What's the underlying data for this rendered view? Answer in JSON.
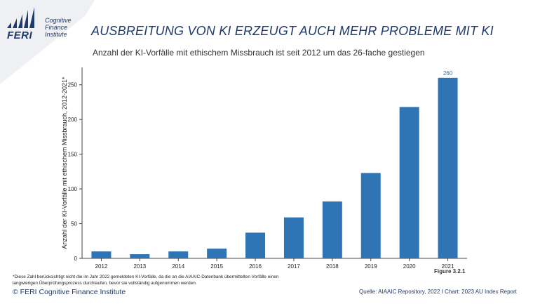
{
  "logo": {
    "name": "FERI",
    "tagline_lines": [
      "Cognitive",
      "Finance",
      "Institute"
    ]
  },
  "title": "AUSBREITUNG VON KI ERZEUGT AUCH MEHR PROBLEME MIT KI",
  "subtitle": "Anzahl der KI-Vorfälle mit ethischem Missbrauch ist seit 2012 um das 26-fache gestiegen",
  "footnote": "*Diese Zahl berücksichtigt nicht die im Jahr 2022 gemeldeten KI-Vorfälle, da die an die AIAAIC-Datenbank übermittelten Vorfälle einen langwierigen Überprüfungsprozess durchlaufen, bevor sie vollständig aufgenommen werden.",
  "copyright": "© FERI Cognitive Finance Institute",
  "source": "Quelle: AIAAIC Repository, 2022 I Chart: 2023 AU Index Report",
  "figure_label": "Figure 3.2.1",
  "colors": {
    "bar": "#2f75b5",
    "title": "#1f3a6e",
    "value_label": "#2f75b5"
  },
  "chart_data": {
    "type": "bar",
    "categories": [
      "2012",
      "2013",
      "2014",
      "2015",
      "2016",
      "2017",
      "2018",
      "2019",
      "2020",
      "2021"
    ],
    "values": [
      10,
      6,
      10,
      14,
      37,
      59,
      82,
      123,
      218,
      260
    ],
    "ylabel": "Anzahl der KI-Vorfälle mit ethischem Missbrauch, 2012-2021*",
    "ylim": [
      0,
      275
    ],
    "yticks": [
      0,
      50,
      100,
      150,
      200,
      250
    ],
    "labeled_values": {
      "2021": "260"
    },
    "grid": false,
    "legend": "none"
  }
}
